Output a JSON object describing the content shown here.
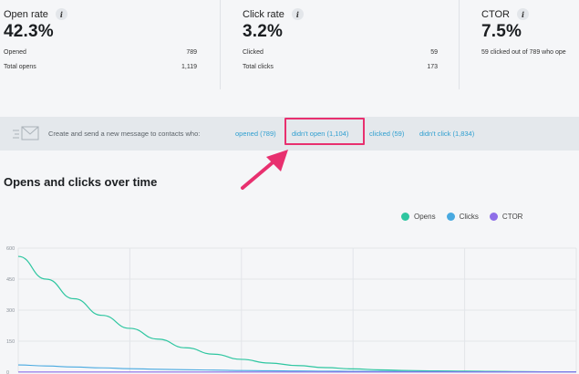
{
  "stats": [
    {
      "title": "Open rate",
      "value": "42.3%",
      "rows": [
        {
          "label": "Opened",
          "value": "789"
        },
        {
          "label": "Total opens",
          "value": "1,119"
        }
      ]
    },
    {
      "title": "Click rate",
      "value": "3.2%",
      "rows": [
        {
          "label": "Clicked",
          "value": "59"
        },
        {
          "label": "Total clicks",
          "value": "173"
        }
      ]
    },
    {
      "title": "CTOR",
      "value": "7.5%",
      "note": "59 clicked out of 789 who ope"
    }
  ],
  "action_bar": {
    "prompt": "Create and send a new message to contacts who:",
    "links": [
      "opened (789)",
      "didn't open (1,104)",
      "clicked (59)",
      "didn't click (1,834)"
    ],
    "highlighted_link": "didn't open (1,104)"
  },
  "section_title": "Opens and clicks over time",
  "colors": {
    "opens": "#2ec6a0",
    "clicks": "#48a9e0",
    "ctor": "#8e6ee8",
    "highlight": "#e8306f",
    "link": "#2f9fd0"
  },
  "chart_data": {
    "type": "line",
    "y_ticks": [
      "600",
      "450",
      "300",
      "150",
      "0"
    ],
    "ylim": [
      0,
      600
    ],
    "x": [
      0,
      1,
      2,
      3,
      4,
      5,
      6,
      7,
      8,
      9,
      10,
      11,
      12,
      13,
      14,
      15,
      16,
      17,
      18,
      19,
      20
    ],
    "xlim": [
      0,
      20
    ],
    "series": [
      {
        "name": "Opens",
        "values": [
          560,
          450,
          355,
          275,
          212,
          160,
          118,
          87,
          62,
          44,
          32,
          22,
          16,
          11,
          8,
          6,
          5,
          4,
          3,
          2,
          2
        ]
      },
      {
        "name": "Clicks",
        "values": [
          35,
          30,
          25,
          21,
          17,
          14,
          12,
          10,
          8,
          7,
          6,
          5,
          4,
          4,
          3,
          3,
          2,
          2,
          2,
          2,
          2
        ]
      },
      {
        "name": "CTOR",
        "values": [
          1,
          1,
          1,
          1,
          1,
          1,
          1,
          1,
          1,
          1,
          1,
          1,
          1,
          1,
          1,
          1,
          1,
          1,
          1,
          1,
          1
        ]
      }
    ]
  }
}
